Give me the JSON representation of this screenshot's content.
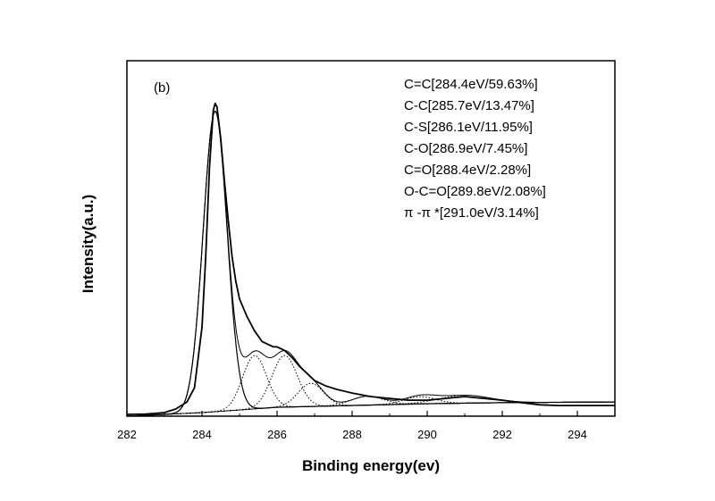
{
  "chart_data": {
    "type": "line",
    "panel_label": "(b)",
    "title": "",
    "xlabel": "Binding energy(ev)",
    "ylabel": "Intensity(a.u.)",
    "xlim": [
      282,
      295
    ],
    "x_ticks": [
      282,
      284,
      286,
      288,
      290,
      292,
      294
    ],
    "y_ticks_shown": false,
    "y_unit": "a.u.",
    "ylim": [
      0,
      100
    ],
    "grid": false,
    "legend_position": "top-right",
    "legend": [
      "C=C[284.4eV/59.63%]",
      "C-C[285.7eV/13.47%]",
      "C-S[286.1eV/11.95%]",
      "C-O[286.9eV/7.45%]",
      "C=O[288.4eV/2.28%]",
      "O-C=O[289.8eV/2.08%]",
      "π -π *[291.0eV/3.14%]"
    ],
    "background": {
      "x": [
        282,
        284,
        286,
        288,
        290,
        292,
        295
      ],
      "y": [
        0,
        1,
        2.5,
        3,
        3.5,
        3.8,
        4
      ]
    },
    "components": [
      {
        "center": 284.35,
        "height": 84.5,
        "width": 0.75,
        "style": "solid"
      },
      {
        "center": 285.4,
        "height": 15,
        "width": 0.75,
        "style": "dotted"
      },
      {
        "center": 286.2,
        "height": 14.5,
        "width": 0.8,
        "style": "dotted"
      },
      {
        "center": 286.9,
        "height": 6.5,
        "width": 0.8,
        "style": "dotted"
      },
      {
        "center": 288.4,
        "height": 2.5,
        "width": 1.0,
        "style": "dotted"
      },
      {
        "center": 289.8,
        "height": 2.0,
        "width": 1.0,
        "style": "dotted"
      },
      {
        "center": 291.0,
        "height": 2.2,
        "width": 1.6,
        "style": "dotted"
      }
    ],
    "series": [
      {
        "style": "solid",
        "x": [
          282,
          282.5,
          283,
          283.3,
          283.6,
          283.8,
          284.0,
          284.1,
          284.2,
          284.3,
          284.35,
          284.4,
          284.5,
          284.6,
          284.7,
          284.8,
          284.9,
          285.0,
          285.2,
          285.4,
          285.6,
          285.8,
          285.9,
          286.0,
          286.2,
          286.4,
          286.6,
          286.8,
          287.0,
          287.3,
          287.6,
          288.0,
          288.5,
          289.0,
          289.5,
          290.0,
          290.5,
          291.0,
          291.5,
          292.0,
          292.5,
          293.0,
          293.5,
          294.0,
          294.5,
          295.0
        ],
        "y": [
          0.5,
          0.6,
          1,
          2,
          4,
          8,
          25,
          45,
          70,
          86,
          88,
          87,
          78,
          66,
          55,
          45,
          38,
          33,
          28,
          24,
          21,
          20,
          19.5,
          19.5,
          18.5,
          16.5,
          14,
          12,
          10,
          8.5,
          7.5,
          6.5,
          5.5,
          5,
          4.5,
          4.5,
          5,
          5.5,
          5,
          4.5,
          3.8,
          3.2,
          3,
          3,
          3,
          3
        ]
      }
    ]
  }
}
